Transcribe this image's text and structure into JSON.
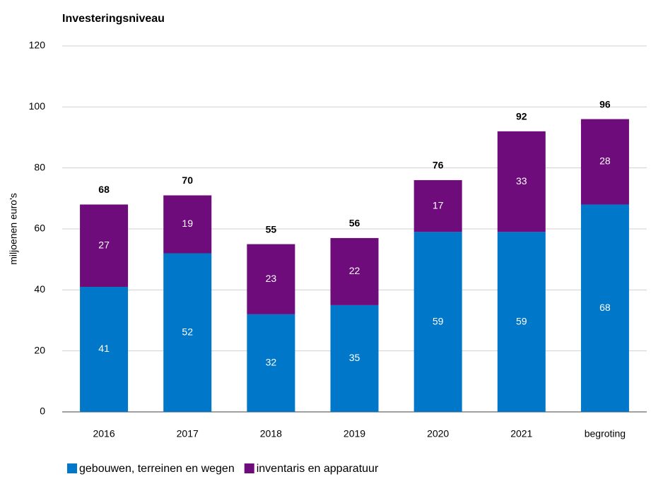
{
  "chart_data": {
    "type": "stacked_bar",
    "title": "Investeringsniveau",
    "y_label": "miljoenen euro's",
    "categories": [
      "2016",
      "2017",
      "2018",
      "2019",
      "2020",
      "2021",
      "begroting"
    ],
    "series": [
      {
        "name": "gebouwen, terreinen en wegen",
        "color": "#0077c8",
        "values": [
          41,
          52,
          32,
          35,
          59,
          59,
          68
        ]
      },
      {
        "name": "inventaris en apparatuur",
        "color": "#6f0c7c",
        "values": [
          27,
          19,
          23,
          22,
          17,
          33,
          28
        ]
      }
    ],
    "totals": [
      68,
      70,
      55,
      56,
      76,
      92,
      96
    ],
    "ylim": [
      0,
      120
    ],
    "yticks": [
      0,
      20,
      40,
      60,
      80,
      100,
      120
    ],
    "grid": true,
    "legend": "bottom"
  }
}
